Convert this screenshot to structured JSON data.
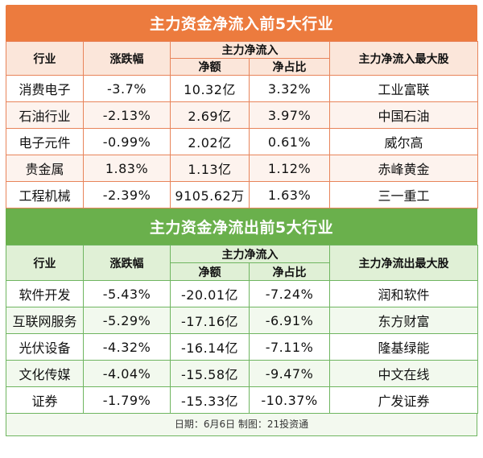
{
  "inflow": {
    "title": "主力资金净流入前5大行业",
    "headers": {
      "industry": "行业",
      "change": "涨跌幅",
      "net_group": "主力净流入",
      "amount": "净额",
      "ratio": "净占比",
      "top_stock": "主力净流入最大股"
    },
    "rows": [
      {
        "industry": "消费电子",
        "change": "-3.7%",
        "amount": "10.32亿",
        "ratio": "3.32%",
        "top_stock": "工业富联"
      },
      {
        "industry": "石油行业",
        "change": "-2.13%",
        "amount": "2.69亿",
        "ratio": "3.97%",
        "top_stock": "中国石油"
      },
      {
        "industry": "电子元件",
        "change": "-0.99%",
        "amount": "2.02亿",
        "ratio": "0.61%",
        "top_stock": "威尔高"
      },
      {
        "industry": "贵金属",
        "change": "1.83%",
        "amount": "1.13亿",
        "ratio": "1.12%",
        "top_stock": "赤峰黄金"
      },
      {
        "industry": "工程机械",
        "change": "-2.39%",
        "amount": "9105.62万",
        "ratio": "1.63%",
        "top_stock": "三一重工"
      }
    ]
  },
  "outflow": {
    "title": "主力资金净流出前5大行业",
    "headers": {
      "industry": "行业",
      "change": "涨跌幅",
      "net_group": "主力净流入",
      "amount": "净额",
      "ratio": "净占比",
      "top_stock": "主力净流出最大股"
    },
    "rows": [
      {
        "industry": "软件开发",
        "change": "-5.43%",
        "amount": "-20.01亿",
        "ratio": "-7.24%",
        "top_stock": "润和软件"
      },
      {
        "industry": "互联网服务",
        "change": "-5.29%",
        "amount": "-17.16亿",
        "ratio": "-6.91%",
        "top_stock": "东方财富"
      },
      {
        "industry": "光伏设备",
        "change": "-4.32%",
        "amount": "-16.14亿",
        "ratio": "-7.11%",
        "top_stock": "隆基绿能"
      },
      {
        "industry": "文化传媒",
        "change": "-4.04%",
        "amount": "-15.58亿",
        "ratio": "-9.47%",
        "top_stock": "中文在线"
      },
      {
        "industry": "证券",
        "change": "-1.79%",
        "amount": "-15.33亿",
        "ratio": "-10.37%",
        "top_stock": "广发证券"
      }
    ]
  },
  "footer": "日期：6月6日 制图：21投资通",
  "colors": {
    "inflow_accent": "#ec7b3e",
    "outflow_accent": "#6ab04c"
  }
}
